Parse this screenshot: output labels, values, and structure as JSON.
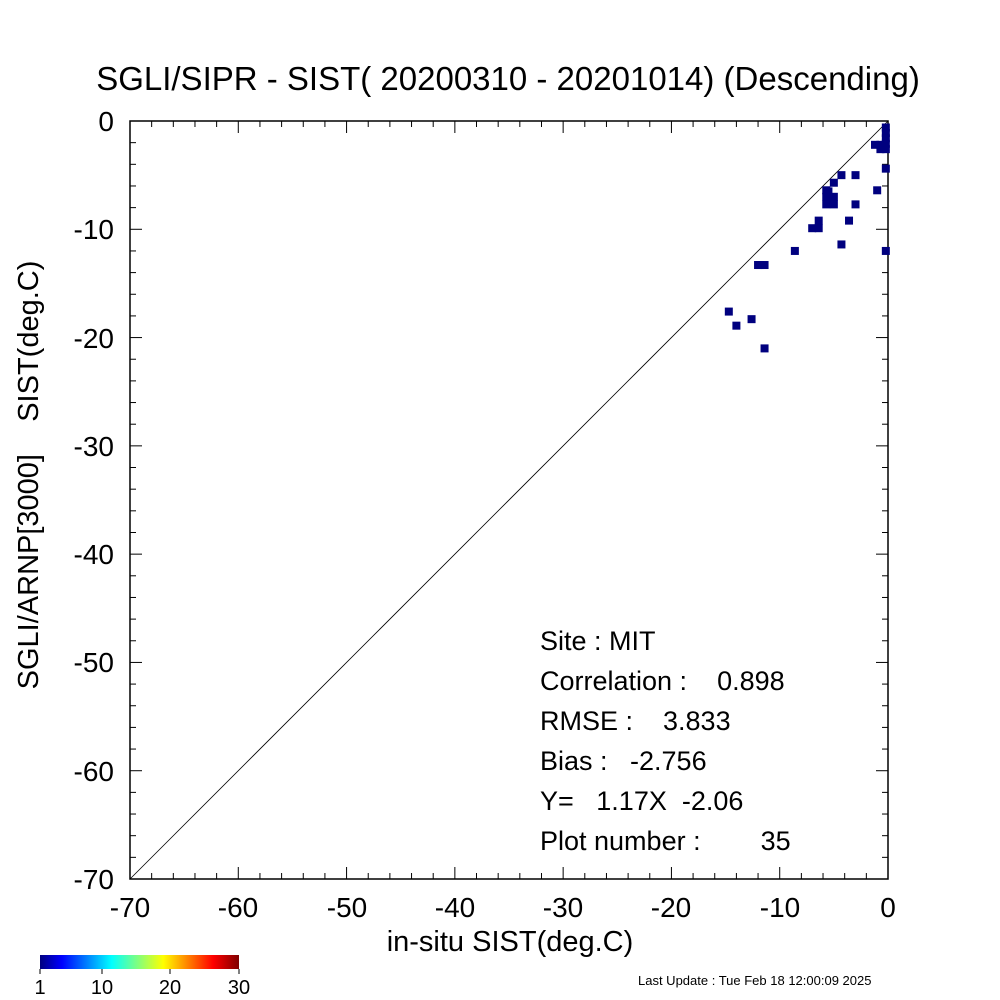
{
  "chart_data": {
    "type": "scatter",
    "title": "SGLI/SIPR - SIST( 20200310 - 20201014) (Descending)",
    "xlabel": "in-situ SIST(deg.C)",
    "ylabel": "SGLI/ARNP[3000]    SIST(deg.C)",
    "xlim": [
      -70,
      0
    ],
    "ylim": [
      -70,
      0
    ],
    "xticks": [
      "-70",
      "-60",
      "-50",
      "-40",
      "-30",
      "-20",
      "-10",
      "0"
    ],
    "yticks": [
      "0",
      "-10",
      "-20",
      "-30",
      "-40",
      "-50",
      "-60",
      "-70"
    ],
    "reference_line": "1:1",
    "marker_color": "#00007f",
    "points": [
      {
        "x": -0.2,
        "y": -1.1
      },
      {
        "x": -0.2,
        "y": -1.6
      },
      {
        "x": -0.2,
        "y": -2.1
      },
      {
        "x": -0.2,
        "y": -2.6
      },
      {
        "x": -0.2,
        "y": -4.4
      },
      {
        "x": -0.2,
        "y": -12.0
      },
      {
        "x": -0.7,
        "y": -2.2
      },
      {
        "x": -1.2,
        "y": -2.2
      },
      {
        "x": -1.0,
        "y": -6.4
      },
      {
        "x": -3.0,
        "y": -5.0
      },
      {
        "x": -3.0,
        "y": -7.7
      },
      {
        "x": -3.6,
        "y": -9.2
      },
      {
        "x": -4.3,
        "y": -5.0
      },
      {
        "x": -4.3,
        "y": -11.4
      },
      {
        "x": -5.0,
        "y": -5.7
      },
      {
        "x": -5.0,
        "y": -7.0
      },
      {
        "x": -5.5,
        "y": -6.5
      },
      {
        "x": -5.5,
        "y": -7.5
      },
      {
        "x": -5.7,
        "y": -6.4
      },
      {
        "x": -5.7,
        "y": -7.0
      },
      {
        "x": -5.7,
        "y": -7.7
      },
      {
        "x": -6.4,
        "y": -9.2
      },
      {
        "x": -7.0,
        "y": -9.9
      },
      {
        "x": -8.6,
        "y": -12.0
      },
      {
        "x": -11.4,
        "y": -13.3
      },
      {
        "x": -12.0,
        "y": -13.3
      },
      {
        "x": -11.4,
        "y": -21.0
      },
      {
        "x": -12.6,
        "y": -18.3
      },
      {
        "x": -14.0,
        "y": -18.9
      },
      {
        "x": -14.7,
        "y": -17.6
      },
      {
        "x": -0.2,
        "y": -0.6
      },
      {
        "x": -0.7,
        "y": -2.6
      },
      {
        "x": -5.0,
        "y": -7.7
      },
      {
        "x": -6.4,
        "y": -9.9
      },
      {
        "x": -11.8,
        "y": -13.3
      }
    ],
    "stats": {
      "site": "Site : MIT",
      "correlation": "Correlation :    0.898",
      "rmse": "RMSE :    3.833",
      "bias": "Bias :   -2.756",
      "fit": "Y=   1.17X  -2.06",
      "plot_number": "Plot number :        35"
    },
    "colorbar": {
      "ticks": [
        "1",
        "10",
        "20",
        "30"
      ],
      "range": [
        1,
        30
      ],
      "colormap": "jet"
    }
  },
  "footer": {
    "last_update": "Last Update : Tue Feb 18 12:00:09 2025"
  }
}
